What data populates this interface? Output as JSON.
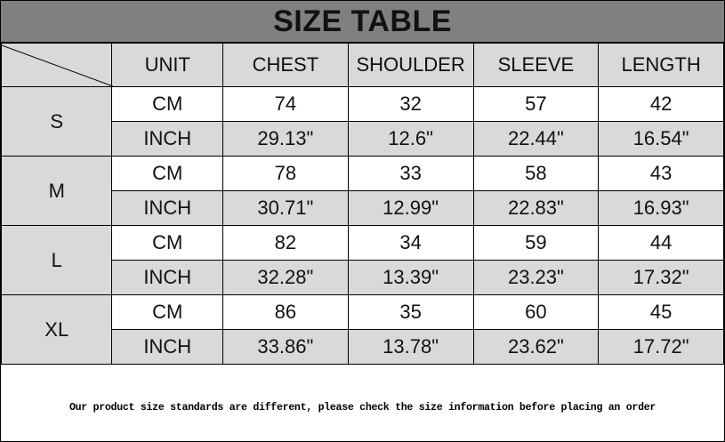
{
  "title": "SIZE TABLE",
  "colors": {
    "title_bg": "#808080",
    "cell_gray": "#d9d9d9",
    "border": "#000000"
  },
  "headers": [
    "UNIT",
    "CHEST",
    "SHOULDER",
    "SLEEVE",
    "LENGTH"
  ],
  "sizes": [
    {
      "size": "S",
      "rows": [
        {
          "unit": "CM",
          "values": [
            "74",
            "32",
            "57",
            "42"
          ]
        },
        {
          "unit": "INCH",
          "values": [
            "29.13\"",
            "12.6\"",
            "22.44\"",
            "16.54\""
          ]
        }
      ]
    },
    {
      "size": "M",
      "rows": [
        {
          "unit": "CM",
          "values": [
            "78",
            "33",
            "58",
            "43"
          ]
        },
        {
          "unit": "INCH",
          "values": [
            "30.71\"",
            "12.99\"",
            "22.83\"",
            "16.93\""
          ]
        }
      ]
    },
    {
      "size": "L",
      "rows": [
        {
          "unit": "CM",
          "values": [
            "82",
            "34",
            "59",
            "44"
          ]
        },
        {
          "unit": "INCH",
          "values": [
            "32.28\"",
            "13.39\"",
            "23.23\"",
            "17.32\""
          ]
        }
      ]
    },
    {
      "size": "XL",
      "rows": [
        {
          "unit": "CM",
          "values": [
            "86",
            "35",
            "60",
            "45"
          ]
        },
        {
          "unit": "INCH",
          "values": [
            "33.86\"",
            "13.78\"",
            "23.62\"",
            "17.72\""
          ]
        }
      ]
    }
  ],
  "footer_note": "Our product size standards are different, please check the size information before placing an order"
}
